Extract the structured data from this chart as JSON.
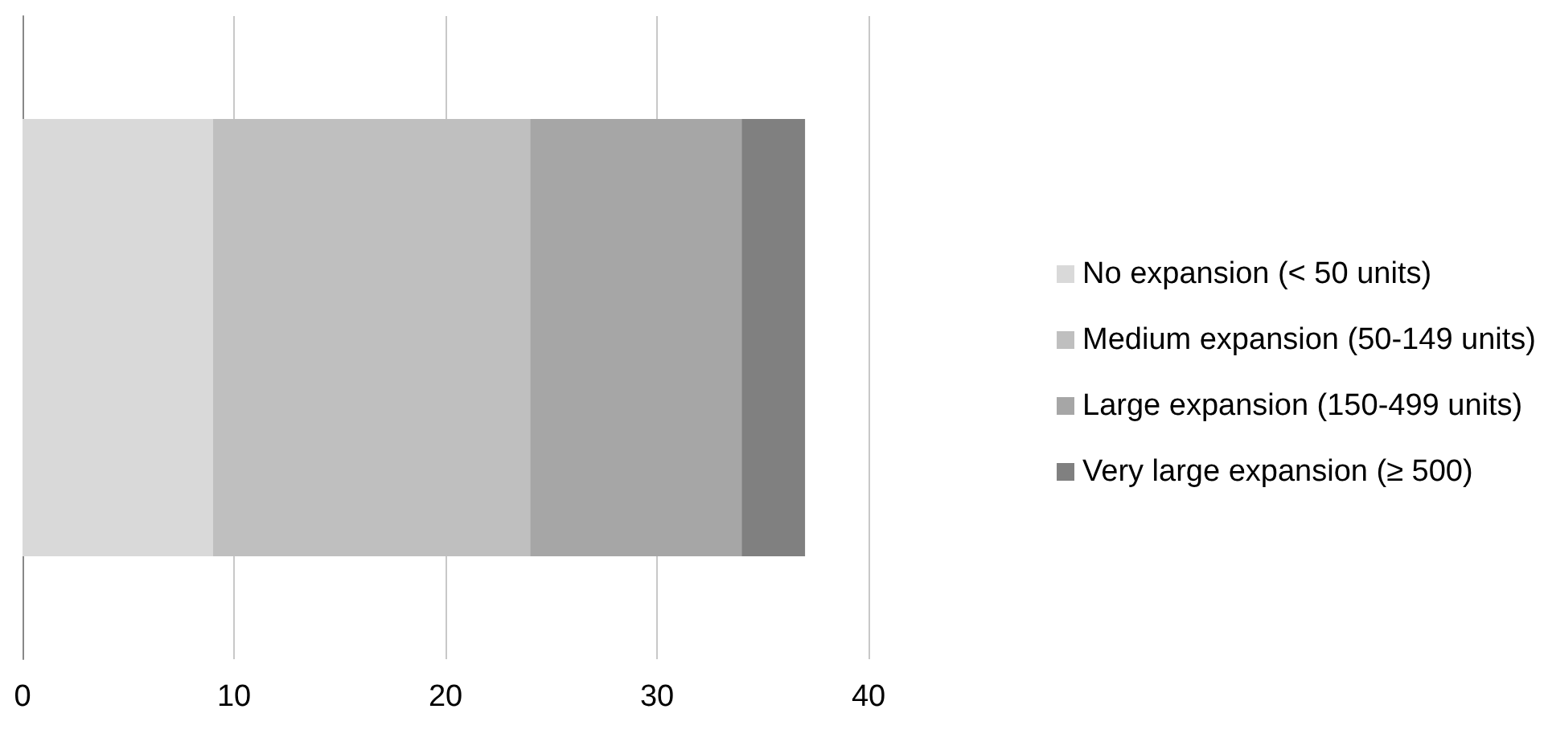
{
  "chart_data": {
    "type": "bar",
    "orientation": "horizontal",
    "stacked": true,
    "categories": [
      null
    ],
    "series": [
      {
        "name": "No expansion (< 50 units)",
        "color": "#d9d9d9",
        "values": [
          9
        ]
      },
      {
        "name": "Medium expansion (50-149 units)",
        "color": "#bfbfbf",
        "values": [
          15
        ]
      },
      {
        "name": "Large expansion (150-499 units)",
        "color": "#a6a6a6",
        "values": [
          10
        ]
      },
      {
        "name": "Very large expansion (≥ 500)",
        "color": "#808080",
        "values": [
          3
        ]
      }
    ],
    "xlim": [
      0,
      40
    ],
    "xticks": [
      0,
      10,
      20,
      30,
      40
    ],
    "grid": "x",
    "legend": "right"
  }
}
